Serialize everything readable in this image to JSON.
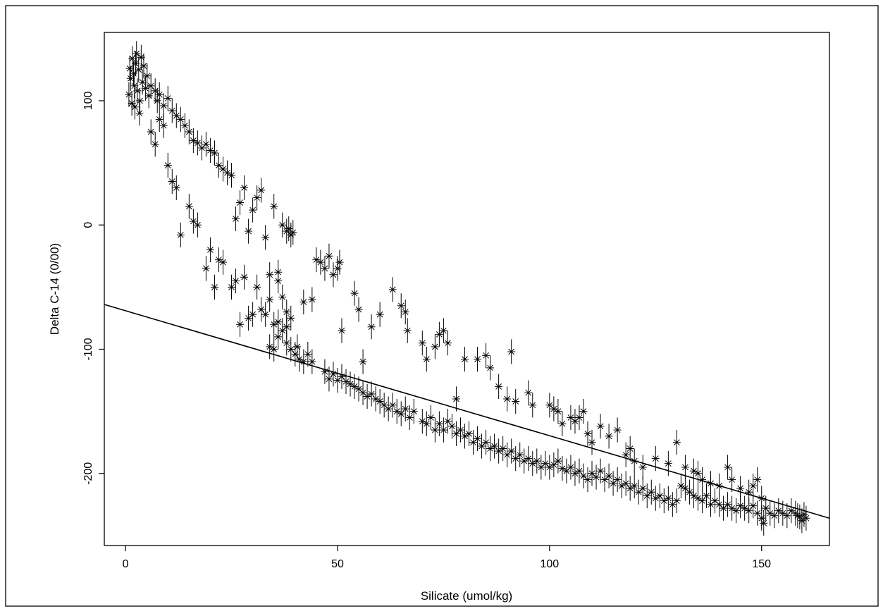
{
  "chart_data": {
    "type": "scatter",
    "title": "",
    "xlabel": "Silicate (umol/kg)",
    "ylabel": "Delta C-14 (0/00)",
    "xlim": [
      -5,
      166
    ],
    "ylim": [
      -258,
      155
    ],
    "xticks": [
      0,
      50,
      100,
      150
    ],
    "yticks": [
      -200,
      -100,
      0,
      100
    ],
    "grid": false,
    "legend": "none",
    "marker": "asterisk",
    "error_bar_halfwidth": 10,
    "fit_line": {
      "x": [
        -5,
        166
      ],
      "y": [
        -64,
        -236
      ]
    },
    "points": [
      [
        0.8,
        105
      ],
      [
        1.2,
        118
      ],
      [
        1.5,
        98
      ],
      [
        1.9,
        122
      ],
      [
        2.1,
        112
      ],
      [
        2.4,
        130
      ],
      [
        2.8,
        108
      ],
      [
        3.1,
        125
      ],
      [
        3.4,
        100
      ],
      [
        3.7,
        135
      ],
      [
        4.0,
        115
      ],
      [
        4.3,
        128
      ],
      [
        4.7,
        110
      ],
      [
        5.1,
        120
      ],
      [
        5.5,
        104
      ],
      [
        1.0,
        126
      ],
      [
        1.6,
        134
      ],
      [
        2.2,
        95
      ],
      [
        2.6,
        138
      ],
      [
        3.3,
        90
      ],
      [
        6,
        112
      ],
      [
        7,
        108
      ],
      [
        7.5,
        100
      ],
      [
        8,
        105
      ],
      [
        9,
        96
      ],
      [
        10,
        102
      ],
      [
        11,
        92
      ],
      [
        12,
        88
      ],
      [
        13,
        85
      ],
      [
        14,
        80
      ],
      [
        15,
        75
      ],
      [
        16,
        68
      ],
      [
        17,
        66
      ],
      [
        18,
        62
      ],
      [
        19,
        65
      ],
      [
        20,
        60
      ],
      [
        21,
        58
      ],
      [
        22,
        48
      ],
      [
        23,
        45
      ],
      [
        24,
        42
      ],
      [
        25,
        40
      ],
      [
        6,
        75
      ],
      [
        7,
        65
      ],
      [
        8,
        85
      ],
      [
        9,
        80
      ],
      [
        10,
        48
      ],
      [
        11,
        35
      ],
      [
        12,
        30
      ],
      [
        13,
        -8
      ],
      [
        15,
        15
      ],
      [
        16,
        3
      ],
      [
        17,
        0
      ],
      [
        19,
        -35
      ],
      [
        20,
        -20
      ],
      [
        21,
        -50
      ],
      [
        22,
        -28
      ],
      [
        23,
        -30
      ],
      [
        25,
        -50
      ],
      [
        26,
        -45
      ],
      [
        27,
        -80
      ],
      [
        28,
        -42
      ],
      [
        29,
        -75
      ],
      [
        26,
        5
      ],
      [
        27,
        18
      ],
      [
        28,
        30
      ],
      [
        29,
        -5
      ],
      [
        30,
        12
      ],
      [
        31,
        22
      ],
      [
        32,
        28
      ],
      [
        33,
        -10
      ],
      [
        34,
        -40
      ],
      [
        35,
        15
      ],
      [
        36,
        -38
      ],
      [
        37,
        0
      ],
      [
        38,
        -5
      ],
      [
        39,
        -8
      ],
      [
        39.5,
        -6
      ],
      [
        38.5,
        -3
      ],
      [
        30,
        -72
      ],
      [
        31,
        -50
      ],
      [
        32,
        -68
      ],
      [
        33,
        -72
      ],
      [
        34,
        -60
      ],
      [
        35,
        -80
      ],
      [
        36,
        -90
      ],
      [
        37,
        -85
      ],
      [
        38,
        -95
      ],
      [
        39,
        -100
      ],
      [
        40,
        -104
      ],
      [
        40.5,
        -98
      ],
      [
        41,
        -108
      ],
      [
        42,
        -110
      ],
      [
        43,
        -104
      ],
      [
        36,
        -45
      ],
      [
        37,
        -58
      ],
      [
        38,
        -70
      ],
      [
        39,
        -75
      ],
      [
        35,
        -100
      ],
      [
        34,
        -98
      ],
      [
        36,
        -78
      ],
      [
        38,
        -82
      ],
      [
        44,
        -110
      ],
      [
        45,
        -28
      ],
      [
        46,
        -30
      ],
      [
        47,
        -35
      ],
      [
        48,
        -25
      ],
      [
        49,
        -40
      ],
      [
        50,
        -35
      ],
      [
        50.5,
        -30
      ],
      [
        47,
        -118
      ],
      [
        48,
        -124
      ],
      [
        49,
        -120
      ],
      [
        50,
        -125
      ],
      [
        51,
        -122
      ],
      [
        52,
        -126
      ],
      [
        53,
        -128
      ],
      [
        54,
        -130
      ],
      [
        55,
        -132
      ],
      [
        56,
        -135
      ],
      [
        57,
        -138
      ],
      [
        58,
        -136
      ],
      [
        59,
        -140
      ],
      [
        60,
        -142
      ],
      [
        61,
        -145
      ],
      [
        62,
        -148
      ],
      [
        63,
        -145
      ],
      [
        42,
        -62
      ],
      [
        44,
        -60
      ],
      [
        51,
        -85
      ],
      [
        54,
        -55
      ],
      [
        55,
        -68
      ],
      [
        56,
        -110
      ],
      [
        58,
        -82
      ],
      [
        60,
        -72
      ],
      [
        63,
        -52
      ],
      [
        65,
        -65
      ],
      [
        66,
        -70
      ],
      [
        66.5,
        -85
      ],
      [
        64,
        -150
      ],
      [
        65,
        -152
      ],
      [
        66,
        -148
      ],
      [
        67,
        -155
      ],
      [
        68,
        -150
      ],
      [
        70,
        -158
      ],
      [
        71,
        -160
      ],
      [
        72,
        -155
      ],
      [
        73,
        -165
      ],
      [
        74,
        -160
      ],
      [
        75,
        -165
      ],
      [
        76,
        -158
      ],
      [
        77,
        -162
      ],
      [
        78,
        -168
      ],
      [
        79,
        -165
      ],
      [
        80,
        -170
      ],
      [
        81,
        -168
      ],
      [
        82,
        -175
      ],
      [
        83,
        -172
      ],
      [
        84,
        -178
      ],
      [
        85,
        -175
      ],
      [
        86,
        -180
      ],
      [
        87,
        -178
      ],
      [
        88,
        -182
      ],
      [
        89,
        -180
      ],
      [
        90,
        -185
      ],
      [
        91,
        -182
      ],
      [
        92,
        -188
      ],
      [
        93,
        -185
      ],
      [
        94,
        -190
      ],
      [
        95,
        -188
      ],
      [
        96,
        -192
      ],
      [
        97,
        -190
      ],
      [
        98,
        -195
      ],
      [
        99,
        -192
      ],
      [
        100,
        -195
      ],
      [
        70,
        -95
      ],
      [
        71,
        -108
      ],
      [
        73,
        -98
      ],
      [
        74,
        -88
      ],
      [
        75,
        -85
      ],
      [
        76,
        -95
      ],
      [
        78,
        -140
      ],
      [
        80,
        -108
      ],
      [
        83,
        -108
      ],
      [
        85,
        -105
      ],
      [
        86,
        -115
      ],
      [
        88,
        -130
      ],
      [
        90,
        -140
      ],
      [
        91,
        -102
      ],
      [
        92,
        -142
      ],
      [
        95,
        -135
      ],
      [
        96,
        -145
      ],
      [
        100,
        -145
      ],
      [
        101,
        -148
      ],
      [
        102,
        -150
      ],
      [
        103,
        -160
      ],
      [
        105,
        -155
      ],
      [
        106,
        -158
      ],
      [
        107,
        -155
      ],
      [
        108,
        -150
      ],
      [
        109,
        -168
      ],
      [
        110,
        -175
      ],
      [
        112,
        -162
      ],
      [
        114,
        -170
      ],
      [
        116,
        -165
      ],
      [
        101,
        -193
      ],
      [
        102,
        -190
      ],
      [
        103,
        -196
      ],
      [
        104,
        -198
      ],
      [
        105,
        -195
      ],
      [
        106,
        -200
      ],
      [
        107,
        -198
      ],
      [
        108,
        -202
      ],
      [
        109,
        -205
      ],
      [
        110,
        -200
      ],
      [
        111,
        -203
      ],
      [
        112,
        -198
      ],
      [
        113,
        -205
      ],
      [
        114,
        -202
      ],
      [
        115,
        -208
      ],
      [
        116,
        -205
      ],
      [
        117,
        -210
      ],
      [
        118,
        -208
      ],
      [
        119,
        -212
      ],
      [
        120,
        -210
      ],
      [
        121,
        -215
      ],
      [
        122,
        -212
      ],
      [
        123,
        -218
      ],
      [
        124,
        -215
      ],
      [
        125,
        -220
      ],
      [
        126,
        -218
      ],
      [
        127,
        -222
      ],
      [
        128,
        -220
      ],
      [
        129,
        -225
      ],
      [
        130,
        -222
      ],
      [
        118,
        -185
      ],
      [
        119,
        -180
      ],
      [
        120,
        -190
      ],
      [
        122,
        -195
      ],
      [
        125,
        -188
      ],
      [
        128,
        -192
      ],
      [
        130,
        -175
      ],
      [
        132,
        -195
      ],
      [
        134,
        -198
      ],
      [
        135,
        -200
      ],
      [
        136,
        -205
      ],
      [
        138,
        -208
      ],
      [
        140,
        -210
      ],
      [
        142,
        -195
      ],
      [
        143,
        -205
      ],
      [
        145,
        -212
      ],
      [
        147,
        -215
      ],
      [
        148,
        -210
      ],
      [
        149,
        -205
      ],
      [
        150,
        -220
      ],
      [
        131,
        -210
      ],
      [
        132,
        -212
      ],
      [
        133,
        -215
      ],
      [
        134,
        -218
      ],
      [
        135,
        -220
      ],
      [
        136,
        -222
      ],
      [
        137,
        -218
      ],
      [
        138,
        -225
      ],
      [
        139,
        -222
      ],
      [
        140,
        -225
      ],
      [
        141,
        -228
      ],
      [
        142,
        -225
      ],
      [
        143,
        -228
      ],
      [
        144,
        -230
      ],
      [
        145,
        -226
      ],
      [
        146,
        -228
      ],
      [
        147,
        -230
      ],
      [
        148,
        -226
      ],
      [
        149,
        -232
      ],
      [
        150,
        -236
      ],
      [
        150.5,
        -240
      ],
      [
        151,
        -228
      ],
      [
        152,
        -232
      ],
      [
        153,
        -234
      ],
      [
        154,
        -230
      ],
      [
        155,
        -232
      ],
      [
        156,
        -234
      ],
      [
        157,
        -230
      ],
      [
        158,
        -232
      ],
      [
        159,
        -235
      ],
      [
        160,
        -233
      ],
      [
        160.5,
        -236
      ],
      [
        159.5,
        -238
      ],
      [
        158.5,
        -234
      ]
    ]
  }
}
